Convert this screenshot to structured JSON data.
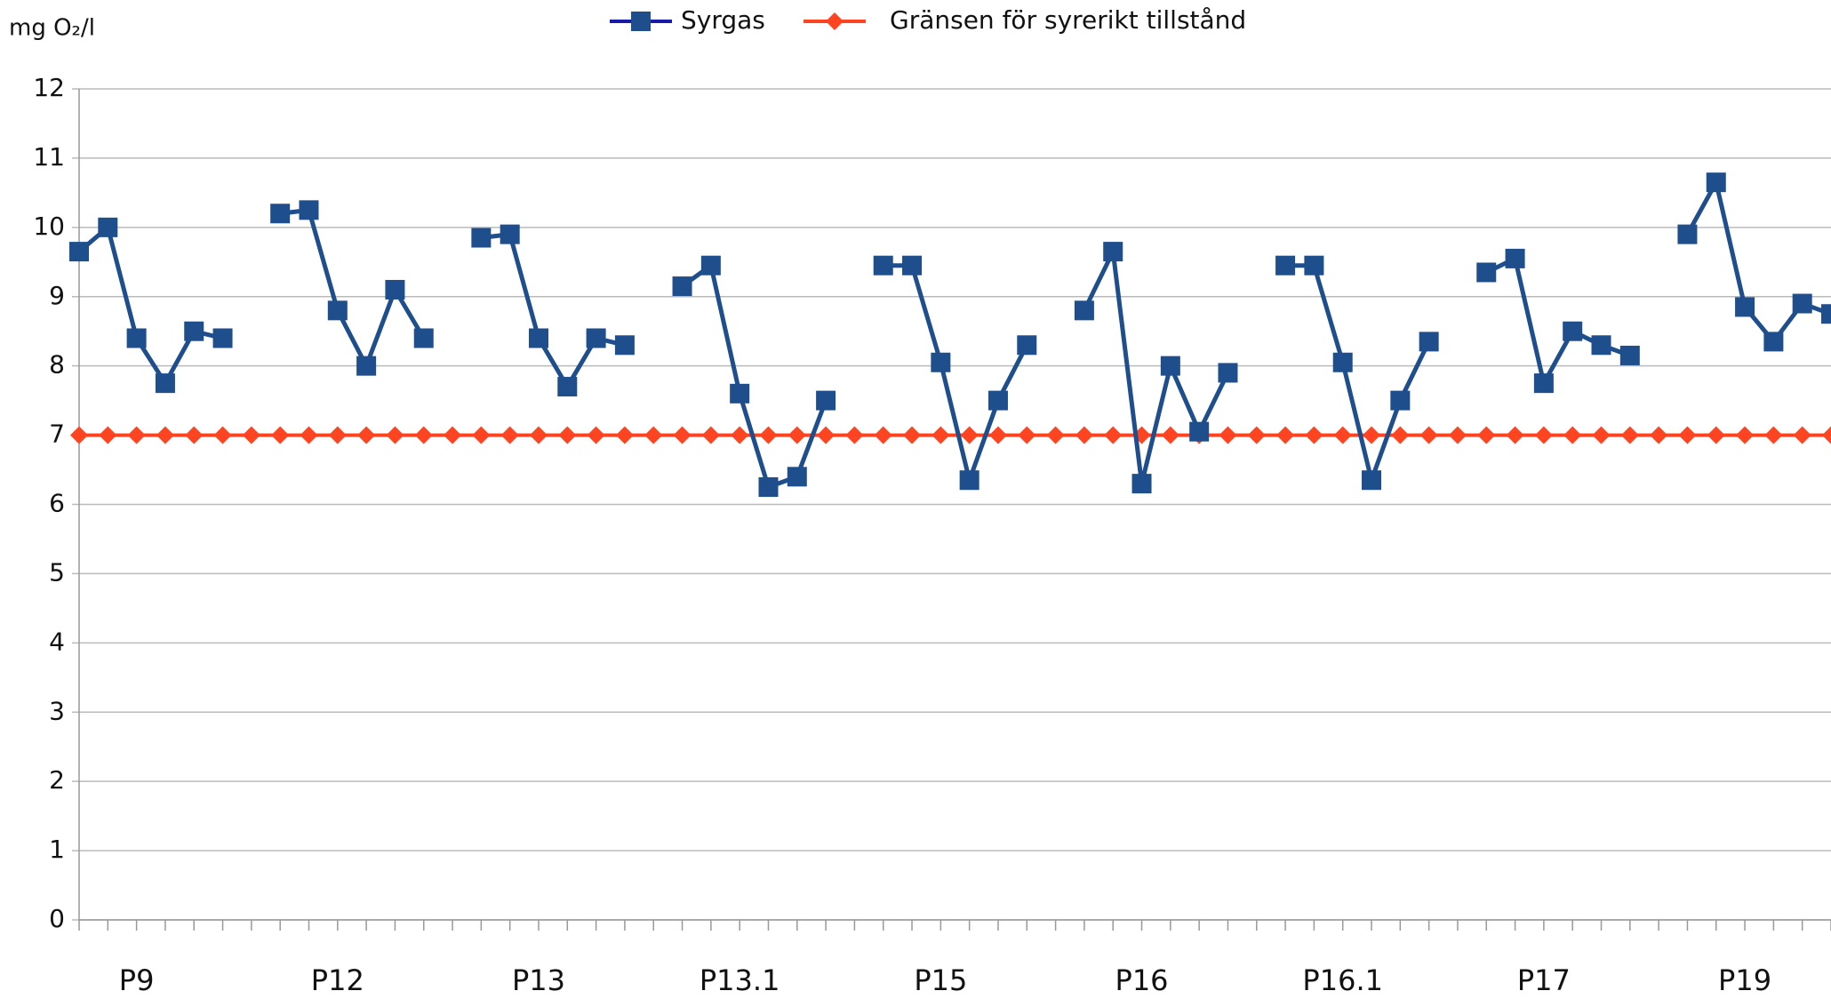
{
  "chart_data": {
    "type": "line",
    "y_label": "mg O₂/l",
    "categories": [
      null,
      null,
      "P9",
      null,
      null,
      null,
      null,
      null,
      null,
      "P12",
      null,
      null,
      null,
      null,
      null,
      null,
      "P13",
      null,
      null,
      null,
      null,
      null,
      null,
      "P13.1",
      null,
      null,
      null,
      null,
      null,
      null,
      "P15",
      null,
      null,
      null,
      null,
      null,
      null,
      "P16",
      null,
      null,
      null,
      null,
      null,
      null,
      "P16.1",
      null,
      null,
      null,
      null,
      null,
      null,
      "P17",
      null,
      null,
      null,
      null,
      null,
      null,
      "P19",
      null,
      null,
      null
    ],
    "series": [
      {
        "name": "Syrgas",
        "color": "#1f4e8c",
        "marker": "square",
        "values": [
          9.65,
          10.0,
          8.4,
          7.75,
          8.5,
          8.4,
          null,
          10.2,
          10.25,
          8.8,
          8.0,
          9.1,
          8.4,
          null,
          9.85,
          9.9,
          8.4,
          7.7,
          8.4,
          8.3,
          null,
          9.15,
          9.45,
          7.6,
          6.25,
          6.4,
          7.5,
          null,
          9.45,
          9.45,
          8.05,
          6.35,
          7.5,
          8.3,
          null,
          8.8,
          9.65,
          6.3,
          8.0,
          7.05,
          7.9,
          null,
          9.45,
          9.45,
          8.05,
          6.35,
          7.5,
          8.35,
          null,
          9.35,
          9.55,
          7.75,
          8.5,
          8.3,
          8.15,
          null,
          9.9,
          10.65,
          8.85,
          8.35,
          8.9,
          8.75
        ]
      },
      {
        "name": "Gränsen för syrerikt tillstånd",
        "color": "#ff4422",
        "marker": "diamond",
        "values": [
          7,
          7,
          7,
          7,
          7,
          7,
          7,
          7,
          7,
          7,
          7,
          7,
          7,
          7,
          7,
          7,
          7,
          7,
          7,
          7,
          7,
          7,
          7,
          7,
          7,
          7,
          7,
          7,
          7,
          7,
          7,
          7,
          7,
          7,
          7,
          7,
          7,
          7,
          7,
          7,
          7,
          7,
          7,
          7,
          7,
          7,
          7,
          7,
          7,
          7,
          7,
          7,
          7,
          7,
          7,
          7,
          7,
          7,
          7,
          7,
          7,
          7
        ]
      }
    ],
    "ylim": [
      0,
      12
    ],
    "yticks": [
      0,
      1,
      2,
      3,
      4,
      5,
      6,
      7,
      8,
      9,
      10,
      11,
      12
    ],
    "grid": true,
    "legend": "top"
  }
}
